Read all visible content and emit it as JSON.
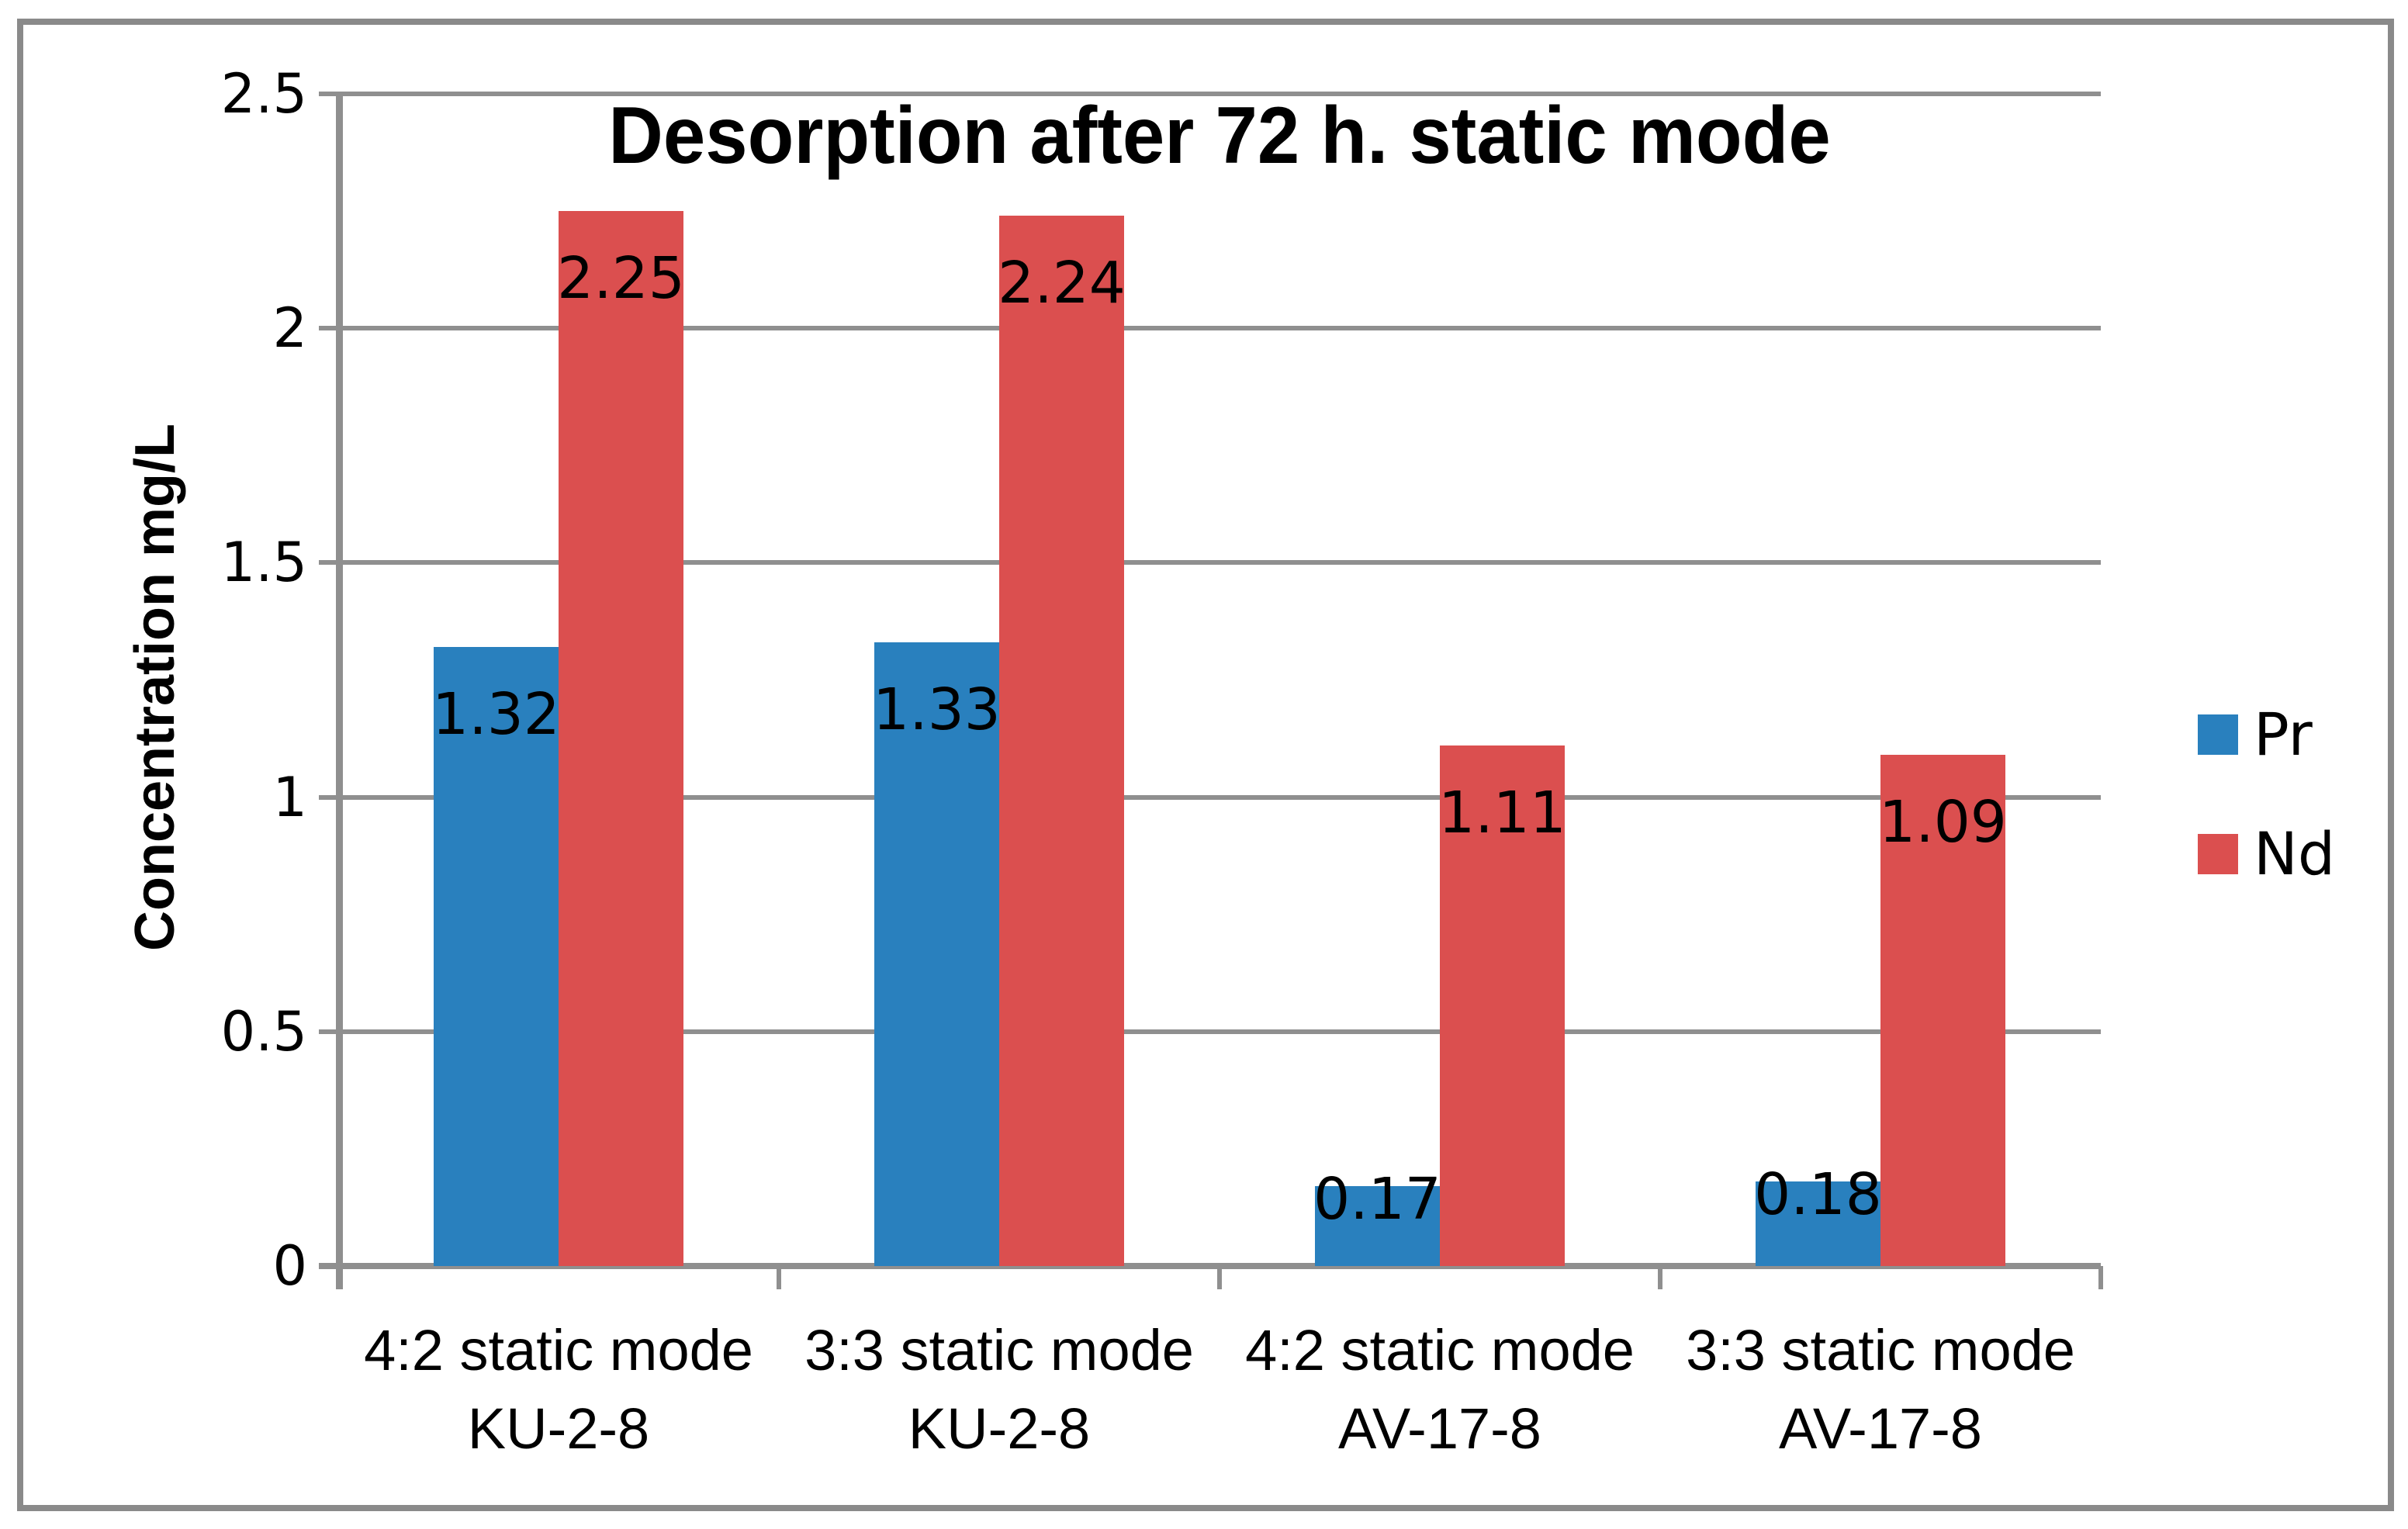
{
  "chart_data": {
    "type": "bar",
    "title": "Desorption after 72 h. static mode",
    "xlabel": "",
    "ylabel": "Concentration mg/L",
    "ylim": [
      0,
      2.5
    ],
    "ytick_labels": [
      "0",
      "0.5",
      "1",
      "1.5",
      "2",
      "2.5"
    ],
    "grid": true,
    "data_labels": true,
    "legend_position": "right",
    "categories": [
      [
        "4:2 static mode",
        "KU-2-8"
      ],
      [
        "3:3 static mode",
        "KU-2-8"
      ],
      [
        "4:2 static mode",
        "AV-17-8"
      ],
      [
        "3:3 static mode",
        "AV-17-8"
      ]
    ],
    "series": [
      {
        "name": "Pr",
        "color": "#2980be",
        "values": [
          1.32,
          1.33,
          0.17,
          0.18
        ]
      },
      {
        "name": "Nd",
        "color": "#db4f4f",
        "values": [
          2.25,
          2.24,
          1.11,
          1.09
        ]
      }
    ]
  },
  "colors": {
    "background": "#ffffff",
    "border": "#8a8a8a",
    "gridline": "#8f8f8f",
    "text": "#000000"
  }
}
